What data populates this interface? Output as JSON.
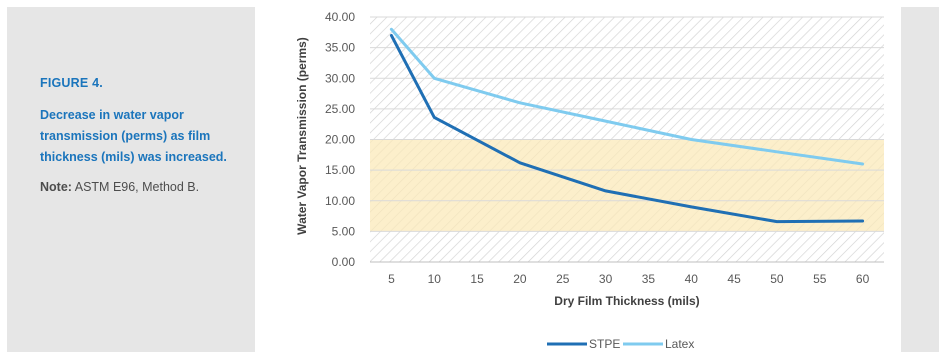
{
  "caption": {
    "figure_label": "FIGURE 4.",
    "description": "Decrease in water vapor transmission (perms) as film thickness (mils) was increased.",
    "note_label": "Note:",
    "note_text": "ASTM E96, Method B."
  },
  "chart_data": {
    "type": "line",
    "title": "",
    "xlabel": "Dry Film Thickness (mils)",
    "ylabel": "Water Vapor Transmission (perms)",
    "x_ticks": [
      "5",
      "10",
      "15",
      "20",
      "25",
      "30",
      "35",
      "40",
      "45",
      "50",
      "55",
      "60"
    ],
    "y_ticks": [
      "0.00",
      "5.00",
      "10.00",
      "15.00",
      "20.00",
      "25.00",
      "30.00",
      "35.00",
      "40.00"
    ],
    "xlim": [
      5,
      60
    ],
    "ylim": [
      0,
      40
    ],
    "highlight_band": {
      "y_from": 5,
      "y_to": 20,
      "color": "#fbe9b7"
    },
    "background_pattern": "diagonal hatch",
    "legend_position": "bottom",
    "series": [
      {
        "name": "STPE",
        "color": "#1f6fb4",
        "points": [
          [
            5,
            37.0
          ],
          [
            10,
            23.6
          ],
          [
            20,
            16.2
          ],
          [
            30,
            11.6
          ],
          [
            40,
            9.0
          ],
          [
            50,
            6.6
          ],
          [
            60,
            6.7
          ]
        ]
      },
      {
        "name": "Latex",
        "color": "#7fcbef",
        "points": [
          [
            5,
            38.0
          ],
          [
            10,
            30.0
          ],
          [
            20,
            26.0
          ],
          [
            30,
            23.0
          ],
          [
            40,
            20.0
          ],
          [
            50,
            18.0
          ],
          [
            60,
            16.0
          ]
        ]
      }
    ]
  }
}
